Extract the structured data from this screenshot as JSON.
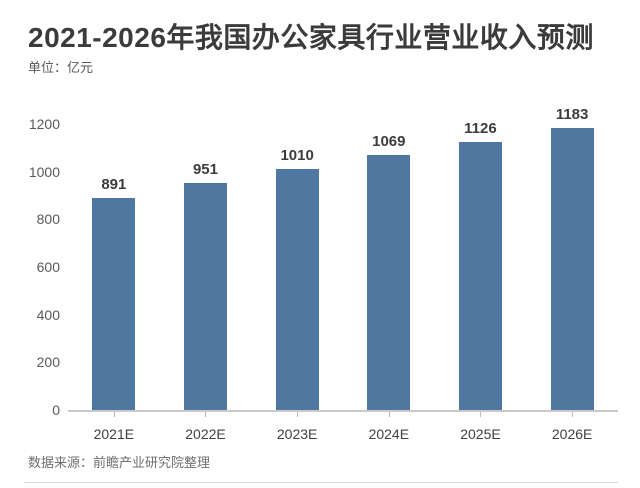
{
  "header": {
    "title": "2021-2026年我国办公家具行业营业收入预测",
    "unit_label": "单位：亿元"
  },
  "footer": {
    "source": "数据来源：前瞻产业研究院整理"
  },
  "colors": {
    "bar": "#4f77a0",
    "title_text": "#3b3b3b",
    "axis_line": "#c9c9c9",
    "tick_text": "#595959",
    "source_text": "#6f6f6f"
  },
  "chart_data": {
    "type": "bar",
    "title": "2021-2026年我国办公家具行业营业收入预测",
    "xlabel": "",
    "ylabel": "单位：亿元",
    "categories": [
      "2021E",
      "2022E",
      "2023E",
      "2024E",
      "2025E",
      "2026E"
    ],
    "values": [
      891,
      951,
      1010,
      1069,
      1126,
      1183
    ],
    "ylim": [
      0,
      1200
    ],
    "yticks": [
      0,
      200,
      400,
      600,
      800,
      1000,
      1200
    ],
    "grid": false,
    "legend": null,
    "bar_color": "#4f77a0",
    "data_labels": true
  }
}
